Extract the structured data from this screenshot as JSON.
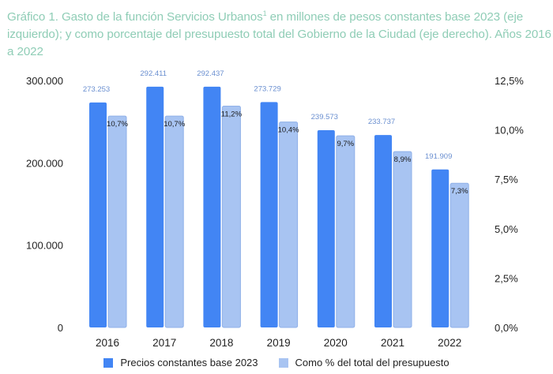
{
  "title": {
    "text_before_sup": "Gráfico 1. Gasto de la función Servicios Urbanos",
    "sup": "1",
    "text_after_sup": " en millones de pesos constantes base 2023 (eje izquierdo); y como porcentaje del presupuesto total del Gobierno de la Ciudad (eje derecho). Años 2016 a 2022"
  },
  "colors": {
    "title": "#8fcdb6",
    "series_primary": "#4285f4",
    "series_secondary": "#a8c4f2",
    "series_secondary_border": "#8fb0e8",
    "value_label": "#6a8fd0"
  },
  "chart_data": {
    "type": "bar",
    "title": "Gráfico 1. Gasto de la función Servicios Urbanos en millones de pesos constantes base 2023 (eje izquierdo); y como porcentaje del presupuesto total del Gobierno de la Ciudad (eje derecho). Años 2016 a 2022",
    "categories": [
      "2016",
      "2017",
      "2018",
      "2019",
      "2020",
      "2021",
      "2022"
    ],
    "series": [
      {
        "name": "Precios constantes base 2023",
        "axis": "left",
        "values": [
          273253,
          292411,
          292437,
          273729,
          239573,
          233737,
          191909
        ],
        "labels": [
          "273.253",
          "292.411",
          "292.437",
          "273.729",
          "239.573",
          "233.737",
          "191.909"
        ]
      },
      {
        "name": "Como % del total del presupuesto",
        "axis": "right",
        "values": [
          10.7,
          10.7,
          11.2,
          10.4,
          9.7,
          8.9,
          7.3
        ],
        "labels": [
          "10,7%",
          "10,7%",
          "11,2%",
          "10,4%",
          "9,7%",
          "8,9%",
          "7,3%"
        ]
      }
    ],
    "y_left": {
      "range": [
        0,
        300000
      ],
      "ticks": [
        0,
        100000,
        200000,
        300000
      ],
      "tick_labels": [
        "0",
        "100.000",
        "200.000",
        "300.000"
      ]
    },
    "y_right": {
      "range": [
        0,
        12.5
      ],
      "ticks": [
        0,
        2.5,
        5,
        7.5,
        10,
        12.5
      ],
      "tick_labels": [
        "0,0%",
        "2,5%",
        "5,0%",
        "7,5%",
        "10,0%",
        "12,5%"
      ]
    },
    "xlabel": "",
    "ylabel": "",
    "grid": false,
    "legend": "bottom"
  }
}
